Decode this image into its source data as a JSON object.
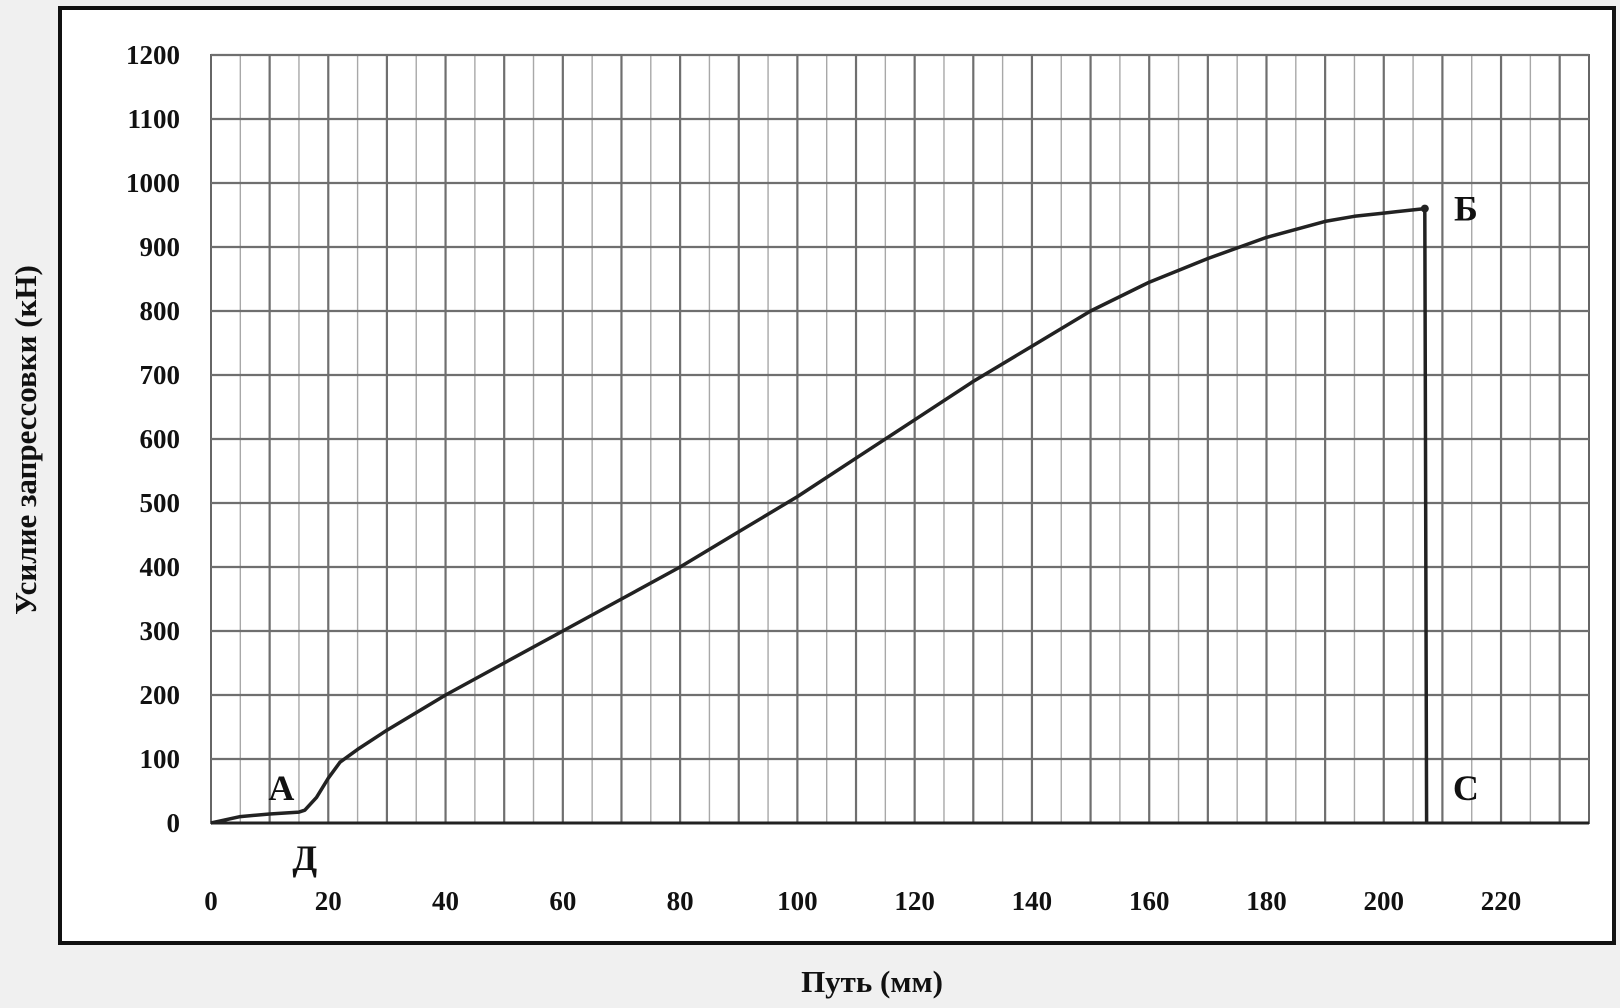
{
  "chart_data": {
    "type": "line",
    "xlabel": "Путь (мм)",
    "ylabel": "Усилие запрессовки (кН)",
    "xlim": [
      0,
      235
    ],
    "ylim": [
      0,
      1200
    ],
    "x_ticks": [
      0,
      20,
      40,
      60,
      80,
      100,
      120,
      140,
      160,
      180,
      200,
      220
    ],
    "y_ticks": [
      0,
      100,
      200,
      300,
      400,
      500,
      600,
      700,
      800,
      900,
      1000,
      1100,
      1200
    ],
    "grid": true,
    "legend": "none",
    "series": [
      {
        "x": [
          0,
          5,
          10,
          15,
          16,
          18,
          20,
          22,
          25,
          30,
          40,
          50,
          60,
          70,
          80,
          90,
          100,
          110,
          120,
          130,
          140,
          150,
          160,
          170,
          180,
          190,
          195,
          200,
          205,
          207,
          207.3
        ],
        "y": [
          0,
          10,
          14,
          17,
          20,
          40,
          70,
          95,
          115,
          145,
          200,
          250,
          300,
          350,
          400,
          455,
          510,
          570,
          630,
          690,
          745,
          800,
          845,
          882,
          915,
          940,
          948,
          953,
          958,
          960,
          0
        ]
      }
    ],
    "annotations": [
      {
        "text": "А",
        "x": 12,
        "y": 55
      },
      {
        "text": "Д",
        "x": 16,
        "y": -55
      },
      {
        "text": "Б",
        "x": 214,
        "y": 960
      },
      {
        "text": "С",
        "x": 214,
        "y": 55
      }
    ]
  }
}
